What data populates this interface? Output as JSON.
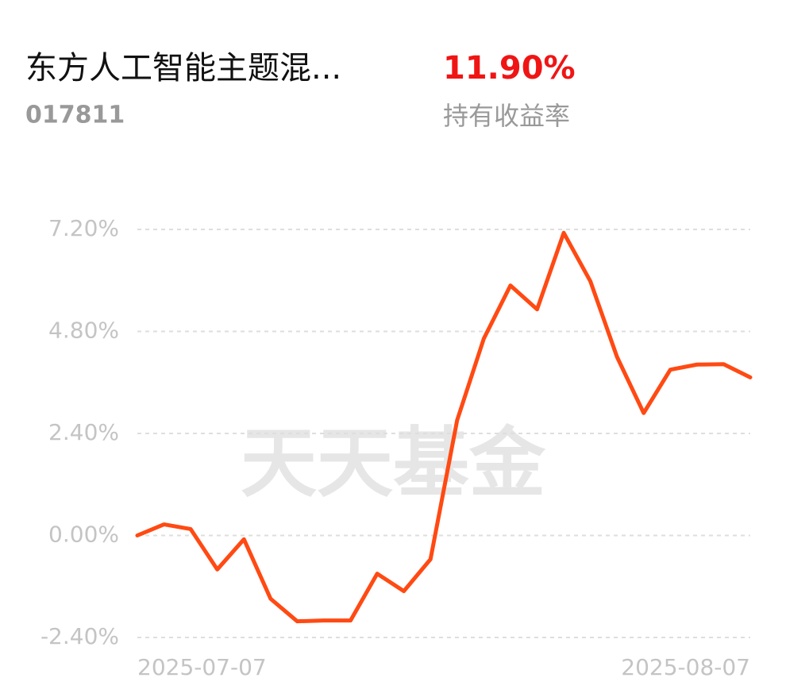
{
  "header": {
    "fund_name": "东方人工智能主题混...",
    "fund_code": "017811",
    "return_value": "11.90%",
    "return_label": "持有收益率"
  },
  "chart_data": {
    "type": "line",
    "watermark": "天天基金",
    "categories": [
      "2025-07-07",
      null,
      null,
      null,
      null,
      null,
      null,
      null,
      null,
      null,
      null,
      null,
      null,
      null,
      null,
      null,
      null,
      null,
      null,
      null,
      null,
      null,
      null,
      "2025-08-07"
    ],
    "series": [
      {
        "color": "#ff4a13",
        "values": [
          0,
          0.26,
          0.15,
          -0.8,
          -0.09,
          -1.49,
          -2.02,
          -2.0,
          -2.0,
          -0.9,
          -1.31,
          -0.56,
          2.71,
          4.63,
          5.88,
          5.32,
          7.12,
          5.98,
          4.2,
          2.88,
          3.9,
          4.02,
          4.03,
          3.72
        ]
      }
    ],
    "ylim": [
      -2.4,
      7.2
    ],
    "yticks": [
      {
        "value": 7.2,
        "label": "7.20%"
      },
      {
        "value": 4.8,
        "label": "4.80%"
      },
      {
        "value": 2.4,
        "label": "2.40%"
      },
      {
        "value": 0,
        "label": "0.00%"
      },
      {
        "value": -2.4,
        "label": "-2.40%"
      }
    ],
    "grid": true
  }
}
